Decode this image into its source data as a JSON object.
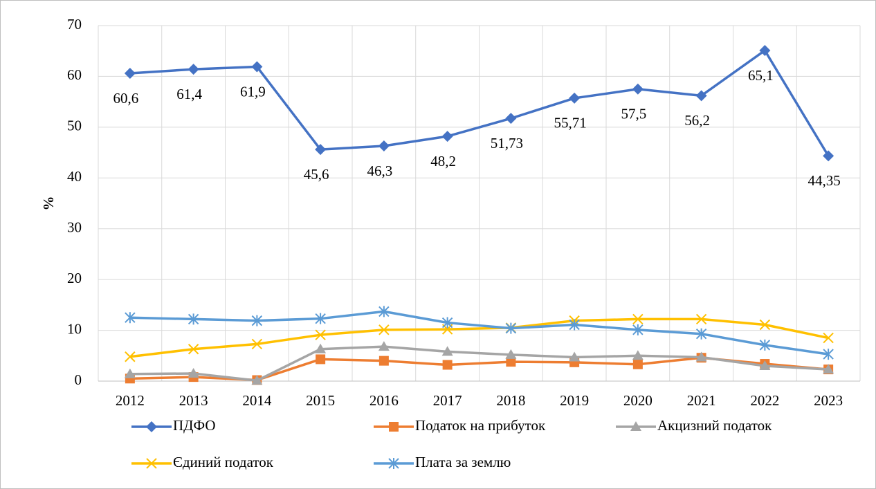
{
  "chart_data": {
    "type": "line",
    "ylabel": "%",
    "categories": [
      "2012",
      "2013",
      "2014",
      "2015",
      "2016",
      "2017",
      "2018",
      "2019",
      "2020",
      "2021",
      "2022",
      "2023"
    ],
    "ylim": [
      0,
      70
    ],
    "yticks": [
      0,
      10,
      20,
      30,
      40,
      50,
      60,
      70
    ],
    "grid": true,
    "series": [
      {
        "name": "ПДФО",
        "color": "#4472c4",
        "marker": "diamond",
        "values": [
          60.6,
          61.4,
          61.9,
          45.6,
          46.3,
          48.2,
          51.73,
          55.71,
          57.5,
          56.2,
          65.1,
          44.35
        ],
        "value_labels": [
          "60,6",
          "61,4",
          "61,9",
          "45,6",
          "46,3",
          "48,2",
          "51,73",
          "55,71",
          "57,5",
          "56,2",
          "65,1",
          "44,35"
        ]
      },
      {
        "name": "Податок на прибуток",
        "color": "#ed7d31",
        "marker": "square",
        "values": [
          0.5,
          0.8,
          0.2,
          4.3,
          4.0,
          3.2,
          3.8,
          3.7,
          3.3,
          4.6,
          3.4,
          2.3
        ]
      },
      {
        "name": "Акцизний податок",
        "color": "#a5a5a5",
        "marker": "triangle",
        "values": [
          1.4,
          1.5,
          0.1,
          6.3,
          6.8,
          5.8,
          5.2,
          4.7,
          5.0,
          4.7,
          3.0,
          2.3
        ]
      },
      {
        "name": "Єдиний податок",
        "color": "#ffc000",
        "marker": "x",
        "values": [
          4.8,
          6.3,
          7.3,
          9.1,
          10.1,
          10.2,
          10.5,
          11.9,
          12.2,
          12.2,
          11.1,
          8.5
        ]
      },
      {
        "name": "Плата за землю",
        "color": "#5b9bd5",
        "marker": "star",
        "values": [
          12.5,
          12.2,
          11.9,
          12.3,
          13.7,
          11.5,
          10.4,
          11.1,
          10.1,
          9.3,
          7.1,
          5.3
        ]
      }
    ],
    "legend": "bottom"
  }
}
